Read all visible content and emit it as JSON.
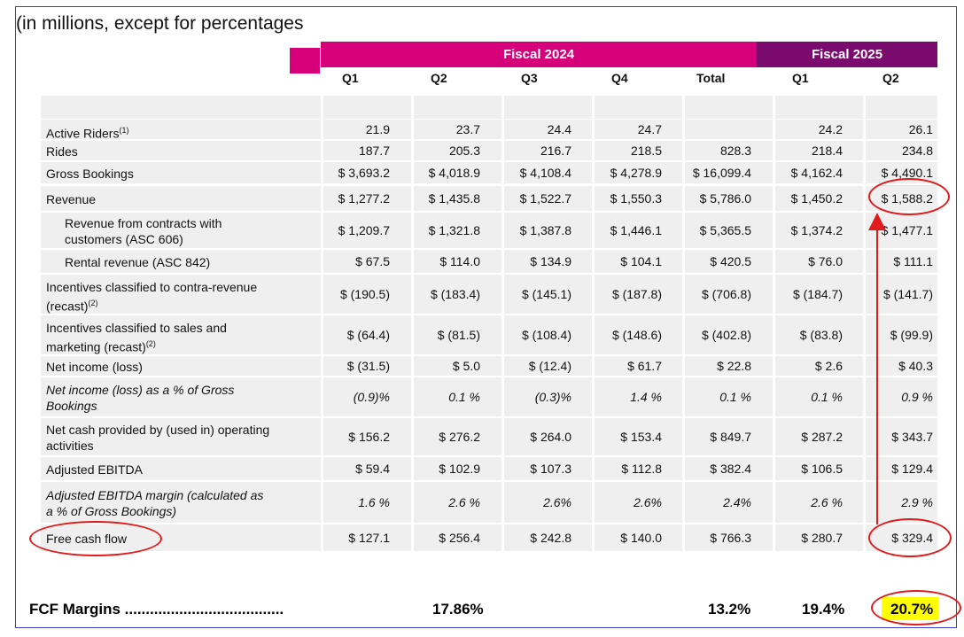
{
  "title": "(in millions, except for percentages",
  "fiscal_2024": "Fiscal 2024",
  "fiscal_2025": "Fiscal 2025",
  "columns": [
    "Q1",
    "Q2",
    "Q3",
    "Q4",
    "Total",
    "Q1",
    "Q2"
  ],
  "rows": [
    {
      "label": "Active Riders",
      "note": "(1)",
      "values": [
        "21.9",
        "23.7",
        "24.4",
        "24.7",
        "",
        "24.2",
        "26.1"
      ]
    },
    {
      "label": "Rides",
      "values": [
        "187.7",
        "205.3",
        "216.7",
        "218.5",
        "828.3",
        "218.4",
        "234.8"
      ]
    },
    {
      "label": "Gross Bookings",
      "values": [
        "$ 3,693.2",
        "$ 4,018.9",
        "$ 4,108.4",
        "$ 4,278.9",
        "$ 16,099.4",
        "$ 4,162.4",
        "$ 4,490.1"
      ]
    },
    {
      "label": "Revenue",
      "values": [
        "$ 1,277.2",
        "$ 1,435.8",
        "$ 1,522.7",
        "$ 1,550.3",
        "$ 5,786.0",
        "$ 1,450.2",
        "$ 1,588.2"
      ]
    },
    {
      "label_lines": [
        "Revenue from contracts with",
        "customers (ASC 606)"
      ],
      "values": [
        "$ 1,209.7",
        "$ 1,321.8",
        "$ 1,387.8",
        "$ 1,446.1",
        "$ 5,365.5",
        "$ 1,374.2",
        "$ 1,477.1"
      ]
    },
    {
      "label": "Rental revenue (ASC 842)",
      "values": [
        "$ 67.5",
        "$ 114.0",
        "$ 134.9",
        "$ 104.1",
        "$ 420.5",
        "$ 76.0",
        "$ 111.1"
      ]
    },
    {
      "label_lines": [
        "Incentives classified to contra-revenue",
        "(recast)"
      ],
      "note": "(2)",
      "values": [
        "$ (190.5)",
        "$ (183.4)",
        "$ (145.1)",
        "$ (187.8)",
        "$ (706.8)",
        "$ (184.7)",
        "$ (141.7)"
      ]
    },
    {
      "label_lines": [
        "Incentives classified to sales and",
        "marketing (recast)"
      ],
      "note": "(2)",
      "values": [
        "$ (64.4)",
        "$ (81.5)",
        "$ (108.4)",
        "$ (148.6)",
        "$ (402.8)",
        "$ (83.8)",
        "$ (99.9)"
      ]
    },
    {
      "label": "Net income (loss)",
      "values": [
        "$ (31.5)",
        "$ 5.0",
        "$ (12.4)",
        "$ 61.7",
        "$ 22.8",
        "$ 2.6",
        "$ 40.3"
      ]
    },
    {
      "label_lines": [
        "Net income (loss) as a % of Gross",
        "Bookings"
      ],
      "values": [
        "(0.9)%",
        "0.1 %",
        "(0.3)%",
        "1.4 %",
        "0.1 %",
        "0.1 %",
        "0.9 %"
      ]
    },
    {
      "label_lines": [
        "Net cash provided by (used in) operating",
        "activities"
      ],
      "values": [
        "$ 156.2",
        "$ 276.2",
        "$ 264.0",
        "$ 153.4",
        "$ 849.7",
        "$ 287.2",
        "$ 343.7"
      ]
    },
    {
      "label": "Adjusted EBITDA",
      "values": [
        "$ 59.4",
        "$ 102.9",
        "$ 107.3",
        "$ 112.8",
        "$ 382.4",
        "$ 106.5",
        "$ 129.4"
      ]
    },
    {
      "label_lines": [
        "Adjusted EBITDA margin (calculated as",
        "a % of Gross Bookings)"
      ],
      "values": [
        "1.6 %",
        "2.6 %",
        "2.6%",
        "2.6%",
        "2.4%",
        "2.6 %",
        "2.9 %"
      ]
    },
    {
      "label": "Free cash flow",
      "values": [
        "$ 127.1",
        "$ 256.4",
        "$ 242.8",
        "$ 140.0",
        "$ 766.3",
        "$ 280.7",
        "$ 329.4"
      ]
    }
  ],
  "fcf_margins": {
    "label": "FCF Margins ......................................",
    "q2_2024": "17.86%",
    "total_2024": "13.2%",
    "q1_2025": "19.4%",
    "q2_2025": "20.7%"
  },
  "colors": {
    "fiscal_2024": "#d6007a",
    "fiscal_2025": "#7a0a6e",
    "highlight": "#ffff00",
    "annotation": "#e01b1b",
    "row_bg": "#efefef"
  }
}
